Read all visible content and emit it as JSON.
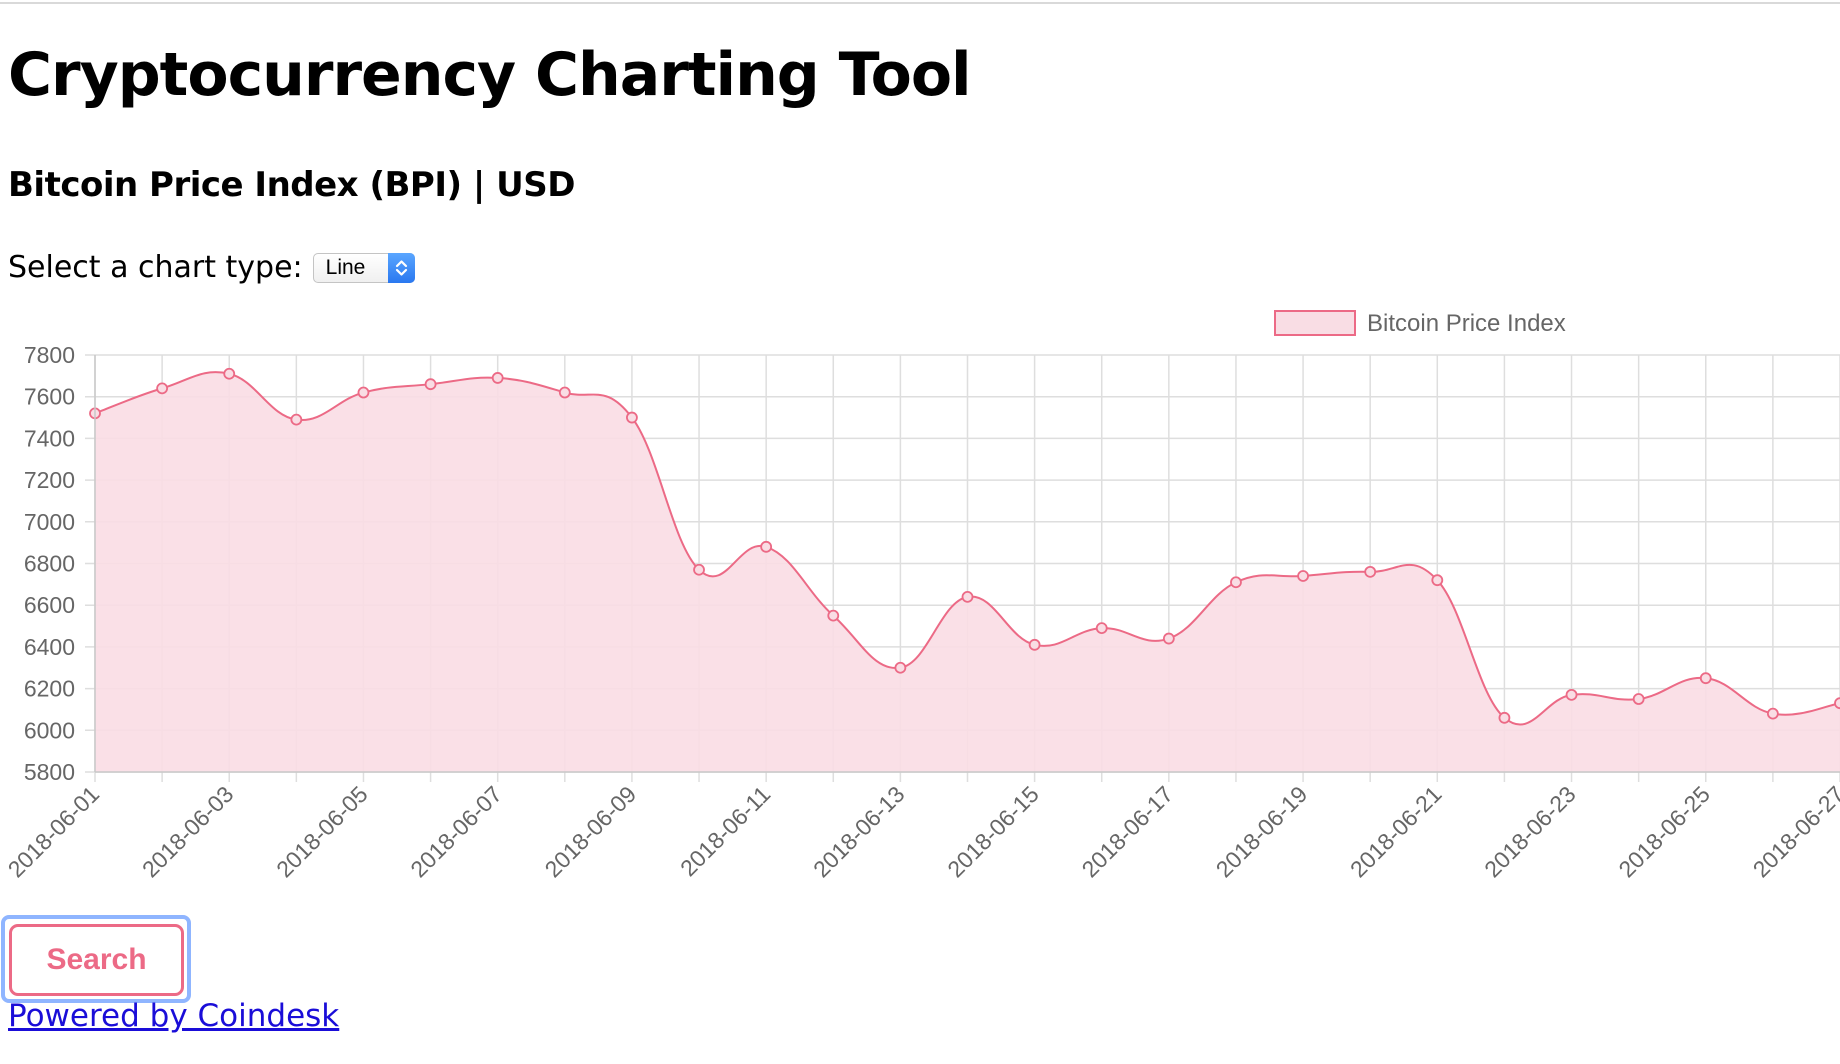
{
  "page": {
    "title": "Cryptocurrency Charting Tool",
    "subtitle": "Bitcoin Price Index (BPI) | USD",
    "chart_type_label": "Select a chart type:",
    "chart_type_selected": "Line",
    "search_label": "Search",
    "powered_by": "Powered by Coindesk"
  },
  "colors": {
    "accent": "#ec6a86",
    "fill": "#f9dde4",
    "grid": "#dedede",
    "tick_text": "#666666",
    "link": "#1a0dd8"
  },
  "chart_data": {
    "type": "line",
    "legend": "Bitcoin Price Index",
    "legend_position": "top",
    "grid": true,
    "filled": true,
    "x": [
      "2018-06-01",
      "2018-06-02",
      "2018-06-03",
      "2018-06-04",
      "2018-06-05",
      "2018-06-06",
      "2018-06-07",
      "2018-06-08",
      "2018-06-09",
      "2018-06-10",
      "2018-06-11",
      "2018-06-12",
      "2018-06-13",
      "2018-06-14",
      "2018-06-15",
      "2018-06-16",
      "2018-06-17",
      "2018-06-18",
      "2018-06-19",
      "2018-06-20",
      "2018-06-21",
      "2018-06-22",
      "2018-06-23",
      "2018-06-24",
      "2018-06-25",
      "2018-06-26",
      "2018-06-27"
    ],
    "x_tick_labels": [
      "2018-06-01",
      "2018-06-03",
      "2018-06-05",
      "2018-06-07",
      "2018-06-09",
      "2018-06-11",
      "2018-06-13",
      "2018-06-15",
      "2018-06-17",
      "2018-06-19",
      "2018-06-21",
      "2018-06-23",
      "2018-06-25",
      "2018-06-27"
    ],
    "values": [
      7520,
      7640,
      7710,
      7490,
      7620,
      7660,
      7690,
      7620,
      7500,
      6770,
      6880,
      6550,
      6300,
      6640,
      6410,
      6490,
      6440,
      6710,
      6740,
      6760,
      6720,
      6060,
      6170,
      6150,
      6250,
      6080,
      6130
    ],
    "y_ticks": [
      5800,
      6000,
      6200,
      6400,
      6600,
      6800,
      7000,
      7200,
      7400,
      7600,
      7800
    ],
    "ylim": [
      5800,
      7800
    ]
  }
}
